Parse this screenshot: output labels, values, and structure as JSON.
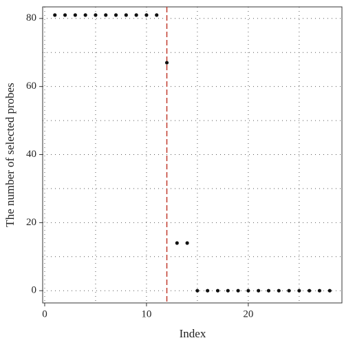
{
  "chart_data": {
    "type": "scatter",
    "x_label": "Index",
    "y_label": "The number of selected probes",
    "x": [
      1,
      2,
      3,
      4,
      5,
      6,
      7,
      8,
      9,
      10,
      11,
      12,
      13,
      14,
      15,
      16,
      17,
      18,
      19,
      20,
      21,
      22,
      23,
      24,
      25,
      26,
      27,
      28
    ],
    "series": [
      {
        "color": "#111111",
        "values": [
          81,
          81,
          81,
          81,
          81,
          81,
          81,
          81,
          81,
          81,
          81,
          67,
          14,
          14,
          0,
          0,
          0,
          0,
          0,
          0,
          0,
          0,
          0,
          0,
          0,
          0,
          0,
          0
        ]
      }
    ],
    "xlim": [
      -0.2,
      29.2
    ],
    "ylim": [
      -3.6,
      83.4
    ],
    "xticks": [
      0,
      10,
      20
    ],
    "yticks": [
      0,
      20,
      40,
      60,
      80
    ],
    "xgrid": [
      0,
      5,
      10,
      15,
      20,
      25
    ],
    "ygrid": [
      0,
      10,
      20,
      30,
      40,
      50,
      60,
      70,
      80
    ],
    "grid": true,
    "vline": {
      "x": 12,
      "color": "#c0392b"
    }
  }
}
